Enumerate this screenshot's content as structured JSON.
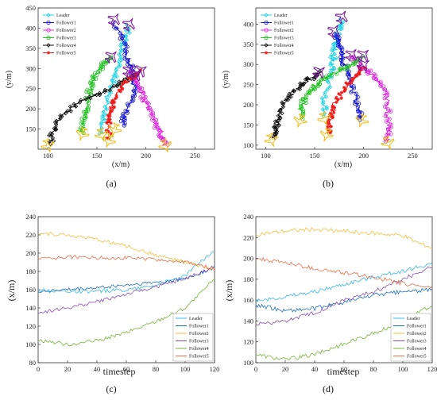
{
  "panels": [
    "(a)",
    "(b)",
    "(c)",
    "(d)"
  ],
  "colors": {
    "Leader": "#22d3e6",
    "Follower1": "#1515d6",
    "Follower2": "#e028e0",
    "Follower3": "#22c322",
    "Follower4": "#111111",
    "Follower5": "#ee1a1a",
    "aircraft_start": "#f0c020",
    "aircraft_end": "#7a1b9e",
    "c_Leader": "#38b8e8",
    "c_Follower1": "#1f6fc0",
    "c_Follower2": "#f0c040",
    "c_Follower3": "#8a50b8",
    "c_Follower4": "#78b43c",
    "c_Follower5": "#e8704a"
  },
  "chart_data": [
    {
      "id": "a",
      "type": "line",
      "xlabel": "(x/m)",
      "ylabel": "(y/m)",
      "xlim": [
        90,
        270
      ],
      "ylim": [
        100,
        450
      ],
      "xticks": [
        100,
        150,
        200,
        250
      ],
      "yticks": [
        150,
        200,
        250,
        300,
        350,
        400,
        450
      ],
      "grid": false,
      "legend_position": "top-left",
      "series": [
        {
          "name": "Leader",
          "x": [
            155,
            158,
            160,
            168,
            170,
            175,
            180,
            183
          ],
          "y": [
            140,
            180,
            230,
            270,
            300,
            340,
            380,
            410
          ]
        },
        {
          "name": "Follower1",
          "x": [
            175,
            178,
            182,
            187,
            188,
            186,
            182,
            180,
            175,
            168
          ],
          "y": [
            160,
            180,
            210,
            240,
            270,
            300,
            320,
            350,
            380,
            415
          ]
        },
        {
          "name": "Follower2",
          "x": [
            220,
            215,
            208,
            200,
            195,
            190,
            183
          ],
          "y": [
            112,
            140,
            175,
            210,
            245,
            270,
            295
          ]
        },
        {
          "name": "Follower3",
          "x": [
            135,
            137,
            140,
            142,
            145,
            150,
            157,
            165
          ],
          "y": [
            140,
            175,
            200,
            240,
            265,
            290,
            310,
            330
          ]
        },
        {
          "name": "Follower4",
          "x": [
            102,
            104,
            108,
            115,
            125,
            140,
            155,
            170,
            180,
            190
          ],
          "y": [
            112,
            135,
            160,
            185,
            205,
            225,
            240,
            260,
            272,
            285
          ]
        },
        {
          "name": "Follower5",
          "x": [
            162,
            162,
            163,
            165,
            168,
            172,
            180,
            188,
            195
          ],
          "y": [
            125,
            160,
            180,
            200,
            220,
            245,
            265,
            280,
            295
          ]
        }
      ],
      "starts": [
        [
          155,
          135
        ],
        [
          168,
          148
        ],
        [
          220,
          108
        ],
        [
          135,
          137
        ],
        [
          100,
          108
        ],
        [
          162,
          120
        ]
      ],
      "ends": [
        [
          183,
          410
        ],
        [
          168,
          422
        ],
        [
          183,
          295
        ],
        [
          165,
          330
        ],
        [
          190,
          285
        ],
        [
          195,
          295
        ]
      ]
    },
    {
      "id": "b",
      "type": "line",
      "xlabel": "(x/m)",
      "ylabel": "(y/m)",
      "xlim": [
        90,
        270
      ],
      "ylim": [
        90,
        440
      ],
      "xticks": [
        100,
        150,
        200,
        250
      ],
      "yticks": [
        100,
        150,
        200,
        250,
        300,
        350,
        400
      ],
      "grid": false,
      "legend_position": "top-left",
      "series": [
        {
          "name": "Leader",
          "x": [
            160,
            160,
            165,
            168,
            170,
            172,
            175,
            178
          ],
          "y": [
            175,
            210,
            260,
            300,
            330,
            360,
            390,
            410
          ]
        },
        {
          "name": "Follower1",
          "x": [
            198,
            195,
            190,
            185,
            180,
            178,
            175,
            172
          ],
          "y": [
            165,
            190,
            230,
            270,
            300,
            330,
            355,
            375
          ]
        },
        {
          "name": "Follower2",
          "x": [
            225,
            226,
            225,
            222,
            215,
            205,
            195,
            188
          ],
          "y": [
            110,
            140,
            180,
            230,
            260,
            280,
            300,
            320
          ]
        },
        {
          "name": "Follower3",
          "x": [
            135,
            137,
            142,
            150,
            160,
            175,
            190,
            200
          ],
          "y": [
            165,
            200,
            225,
            245,
            265,
            285,
            300,
            320
          ]
        },
        {
          "name": "Follower4",
          "x": [
            108,
            110,
            112,
            115,
            122,
            132,
            140,
            148,
            155
          ],
          "y": [
            118,
            140,
            160,
            190,
            215,
            240,
            255,
            270,
            280
          ]
        },
        {
          "name": "Follower5",
          "x": [
            165,
            165,
            168,
            172,
            180,
            188,
            195,
            200
          ],
          "y": [
            130,
            155,
            180,
            210,
            240,
            260,
            280,
            295
          ]
        }
      ],
      "starts": [
        [
          160,
          165
        ],
        [
          198,
          160
        ],
        [
          225,
          105
        ],
        [
          135,
          160
        ],
        [
          106,
          112
        ],
        [
          162,
          125
        ]
      ],
      "ends": [
        [
          178,
          418
        ],
        [
          170,
          384
        ],
        [
          188,
          325
        ],
        [
          200,
          324
        ],
        [
          155,
          282
        ],
        [
          200,
          300
        ]
      ]
    },
    {
      "id": "c",
      "type": "line",
      "xlabel": "timestep",
      "ylabel": "(x/m)",
      "xlim": [
        0,
        120
      ],
      "ylim": [
        80,
        240
      ],
      "xticks": [
        0,
        20,
        40,
        60,
        80,
        100,
        120
      ],
      "yticks": [
        80,
        100,
        120,
        140,
        160,
        180,
        200,
        220,
        240
      ],
      "grid": false,
      "legend_position": "bottom-right",
      "series": [
        {
          "name": "Leader",
          "x": [
            0,
            20,
            40,
            60,
            80,
            100,
            110,
            120
          ],
          "y": [
            160,
            158,
            158,
            160,
            165,
            175,
            190,
            202
          ]
        },
        {
          "name": "Follower1",
          "x": [
            0,
            20,
            40,
            60,
            80,
            100,
            120
          ],
          "y": [
            158,
            160,
            162,
            165,
            168,
            172,
            184
          ]
        },
        {
          "name": "Follower2",
          "x": [
            0,
            20,
            40,
            60,
            80,
            100,
            120
          ],
          "y": [
            222,
            220,
            215,
            208,
            198,
            190,
            182
          ]
        },
        {
          "name": "Follower3",
          "x": [
            0,
            20,
            40,
            60,
            80,
            100,
            120
          ],
          "y": [
            135,
            140,
            147,
            155,
            163,
            172,
            185
          ]
        },
        {
          "name": "Follower4",
          "x": [
            0,
            20,
            40,
            60,
            80,
            100,
            110,
            120
          ],
          "y": [
            105,
            100,
            104,
            113,
            125,
            140,
            155,
            172
          ]
        },
        {
          "name": "Follower5",
          "x": [
            0,
            20,
            40,
            60,
            80,
            100,
            120
          ],
          "y": [
            193,
            196,
            195,
            195,
            193,
            190,
            183
          ]
        }
      ]
    },
    {
      "id": "d",
      "type": "line",
      "xlabel": "timestep",
      "ylabel": "(x/m)",
      "xlim": [
        0,
        120
      ],
      "ylim": [
        100,
        240
      ],
      "xticks": [
        0,
        20,
        40,
        60,
        80,
        100,
        120
      ],
      "yticks": [
        100,
        120,
        140,
        160,
        180,
        200,
        220,
        240
      ],
      "grid": false,
      "legend_position": "bottom-right",
      "series": [
        {
          "name": "Leader",
          "x": [
            0,
            20,
            40,
            60,
            80,
            100,
            120
          ],
          "y": [
            160,
            163,
            168,
            175,
            182,
            188,
            195
          ]
        },
        {
          "name": "Follower1",
          "x": [
            0,
            20,
            40,
            60,
            80,
            100,
            120
          ],
          "y": [
            155,
            150,
            152,
            158,
            165,
            168,
            170
          ]
        },
        {
          "name": "Follower2",
          "x": [
            0,
            20,
            40,
            60,
            80,
            100,
            110,
            120
          ],
          "y": [
            223,
            226,
            228,
            226,
            224,
            222,
            215,
            210
          ]
        },
        {
          "name": "Follower3",
          "x": [
            0,
            20,
            40,
            60,
            80,
            100,
            120
          ],
          "y": [
            137,
            140,
            148,
            160,
            168,
            180,
            192
          ]
        },
        {
          "name": "Follower4",
          "x": [
            0,
            20,
            40,
            60,
            80,
            100,
            120
          ],
          "y": [
            108,
            103,
            108,
            118,
            128,
            140,
            155
          ]
        },
        {
          "name": "Follower5",
          "x": [
            0,
            20,
            40,
            60,
            80,
            100,
            120
          ],
          "y": [
            200,
            196,
            190,
            186,
            182,
            176,
            172
          ]
        }
      ]
    }
  ]
}
